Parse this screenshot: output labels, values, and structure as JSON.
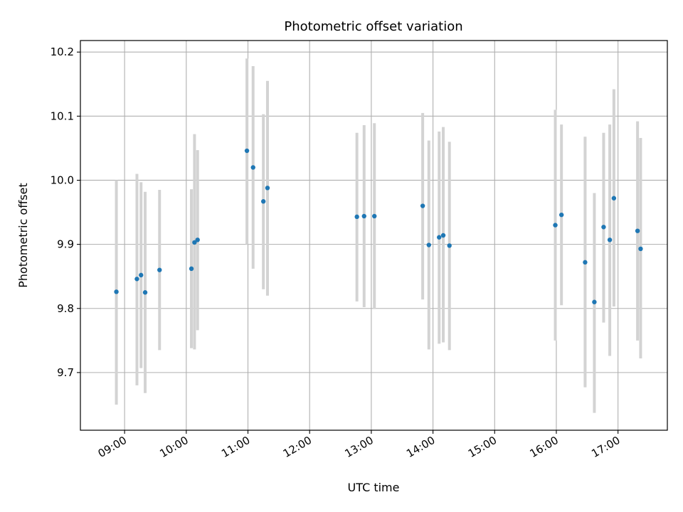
{
  "chart_data": {
    "type": "scatter",
    "title": "Photometric offset variation",
    "xlabel": "UTC time",
    "ylabel": "Photometric offset",
    "x_axis_type": "time",
    "xlim": [
      "08:17",
      "17:48"
    ],
    "ylim": [
      9.61,
      10.218
    ],
    "grid": true,
    "legend": "none",
    "x_ticks": [
      "09:00",
      "10:00",
      "11:00",
      "12:00",
      "13:00",
      "14:00",
      "15:00",
      "16:00",
      "17:00"
    ],
    "y_ticks": [
      9.7,
      9.8,
      9.9,
      10.0,
      10.1,
      10.2
    ],
    "y_tick_labels": [
      "9.7",
      "9.8",
      "9.9",
      "10.0",
      "10.1",
      "10.2"
    ],
    "colors": {
      "point": "#1f77b4",
      "error_bar": "#d3d3d3",
      "grid": "#b0b0b0"
    },
    "points": [
      {
        "x": "08:52",
        "y": 9.826,
        "low": 9.65,
        "high": 10.0
      },
      {
        "x": "09:12",
        "y": 9.846,
        "low": 9.68,
        "high": 10.01
      },
      {
        "x": "09:16",
        "y": 9.852,
        "low": 9.707,
        "high": 9.997
      },
      {
        "x": "09:20",
        "y": 9.825,
        "low": 9.668,
        "high": 9.982
      },
      {
        "x": "09:34",
        "y": 9.86,
        "low": 9.735,
        "high": 9.985
      },
      {
        "x": "10:05",
        "y": 9.862,
        "low": 9.738,
        "high": 9.986
      },
      {
        "x": "10:08",
        "y": 9.903,
        "low": 9.736,
        "high": 10.072
      },
      {
        "x": "10:11",
        "y": 9.907,
        "low": 9.766,
        "high": 10.047
      },
      {
        "x": "10:59",
        "y": 10.046,
        "low": 9.9,
        "high": 10.19
      },
      {
        "x": "11:05",
        "y": 10.02,
        "low": 9.862,
        "high": 10.178
      },
      {
        "x": "11:15",
        "y": 9.967,
        "low": 9.83,
        "high": 10.103
      },
      {
        "x": "11:19",
        "y": 9.988,
        "low": 9.82,
        "high": 10.155
      },
      {
        "x": "12:46",
        "y": 9.943,
        "low": 9.811,
        "high": 10.074
      },
      {
        "x": "12:53",
        "y": 9.944,
        "low": 9.802,
        "high": 10.086
      },
      {
        "x": "13:03",
        "y": 9.944,
        "low": 9.799,
        "high": 10.089
      },
      {
        "x": "13:50",
        "y": 9.96,
        "low": 9.814,
        "high": 10.105
      },
      {
        "x": "13:56",
        "y": 9.899,
        "low": 9.736,
        "high": 10.062
      },
      {
        "x": "14:06",
        "y": 9.911,
        "low": 9.745,
        "high": 10.076
      },
      {
        "x": "14:10",
        "y": 9.914,
        "low": 9.747,
        "high": 10.083
      },
      {
        "x": "14:16",
        "y": 9.898,
        "low": 9.735,
        "high": 10.06
      },
      {
        "x": "15:59",
        "y": 9.93,
        "low": 9.75,
        "high": 10.11
      },
      {
        "x": "16:05",
        "y": 9.946,
        "low": 9.805,
        "high": 10.087
      },
      {
        "x": "16:28",
        "y": 9.872,
        "low": 9.677,
        "high": 10.068
      },
      {
        "x": "16:37",
        "y": 9.81,
        "low": 9.637,
        "high": 9.98
      },
      {
        "x": "16:46",
        "y": 9.927,
        "low": 9.778,
        "high": 10.074
      },
      {
        "x": "16:52",
        "y": 9.907,
        "low": 9.726,
        "high": 10.087
      },
      {
        "x": "16:56",
        "y": 9.972,
        "low": 9.803,
        "high": 10.142
      },
      {
        "x": "17:19",
        "y": 9.921,
        "low": 9.75,
        "high": 10.092
      },
      {
        "x": "17:22",
        "y": 9.893,
        "low": 9.722,
        "high": 10.066
      }
    ]
  }
}
